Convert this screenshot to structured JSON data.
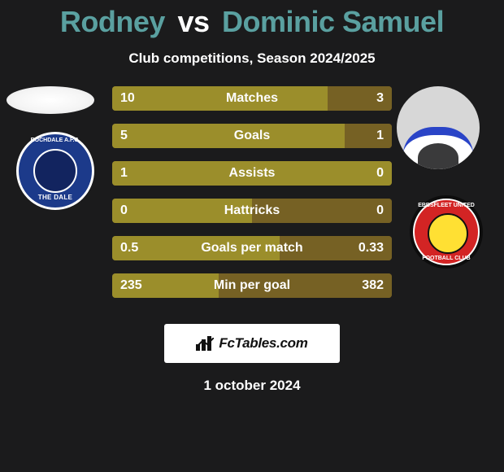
{
  "title": {
    "player1": "Rodney",
    "vs": "vs",
    "player2": "Dominic Samuel",
    "color_p1": "#5aa0a0",
    "color_p2": "#5aa0a0",
    "color_vs": "#ffffff"
  },
  "subtitle": "Club competitions, Season 2024/2025",
  "bar_colors": {
    "left_fill": "#9b8e2b",
    "right_fill": "#766124",
    "text": "#ffffff",
    "label": "#fdfdfd"
  },
  "stats": [
    {
      "label": "Matches",
      "l": "10",
      "r": "3",
      "l_ratio": 0.77,
      "r_ratio": 0.23
    },
    {
      "label": "Goals",
      "l": "5",
      "r": "1",
      "l_ratio": 0.83,
      "r_ratio": 0.17
    },
    {
      "label": "Assists",
      "l": "1",
      "r": "0",
      "l_ratio": 1.0,
      "r_ratio": 0.0
    },
    {
      "label": "Hattricks",
      "l": "0",
      "r": "0",
      "l_ratio": 0.5,
      "r_ratio": 0.5
    },
    {
      "label": "Goals per match",
      "l": "0.5",
      "r": "0.33",
      "l_ratio": 0.6,
      "r_ratio": 0.4
    },
    {
      "label": "Min per goal",
      "l": "235",
      "r": "382",
      "l_ratio": 0.38,
      "r_ratio": 0.62
    }
  ],
  "clubs": {
    "left_name_arc": "ROCHDALE A.F.C.",
    "left_motto": "THE DALE",
    "right_name_top": "EBBSFLEET UNITED",
    "right_name_bottom": "FOOTBALL CLUB"
  },
  "footer": {
    "brand": "FcTables.com",
    "date": "1 october 2024"
  }
}
